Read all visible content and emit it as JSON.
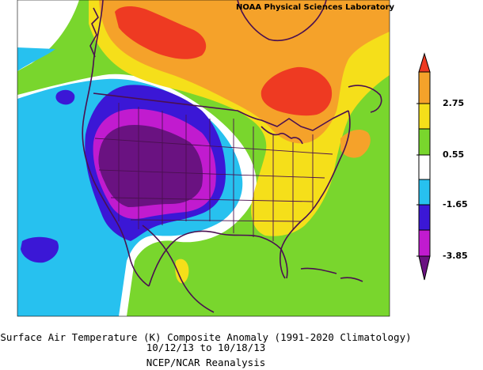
{
  "credit": "NOAA Physical Sciences Laboratory",
  "caption": {
    "title": "Surface Air Temperature (K) Composite Anomaly (1991-2020 Climatology)",
    "dates": "10/12/13   to 10/18/13",
    "source": "NCEP/NCAR Reanalysis"
  },
  "legend": {
    "ticks": [
      "2.75",
      "0.55",
      "-1.65",
      "-3.85"
    ],
    "colors": {
      "very_warm": "#ee3a22",
      "warm": "#f5a22a",
      "mild_warm": "#f5df1a",
      "slight_warm": "#79d62d",
      "neutral": "#ffffff",
      "slight_cool": "#27c1ef",
      "cool": "#3b17d6",
      "cold": "#c11bcf",
      "very_cold": "#6a1281"
    }
  }
}
